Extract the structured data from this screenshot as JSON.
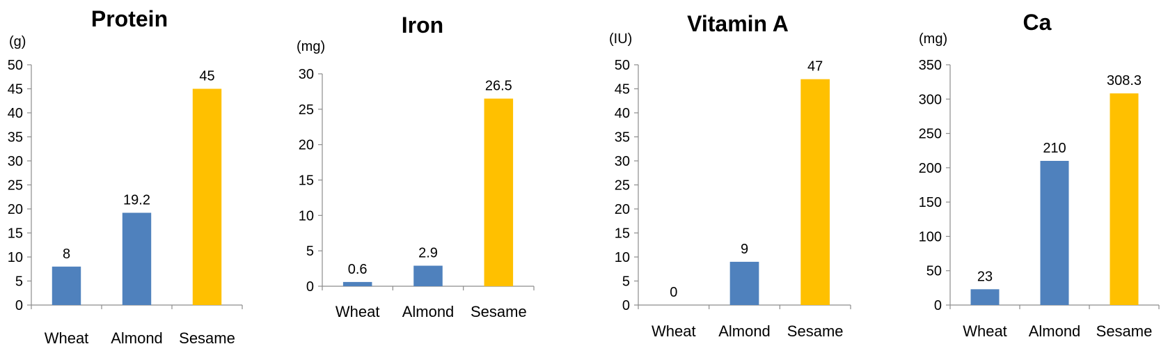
{
  "colors": {
    "blue": "#4f81bd",
    "gold": "#ffc000",
    "axis": "#8c8c8c"
  },
  "chart_data": [
    {
      "type": "bar",
      "title": "Protein",
      "ylabel": "(g)",
      "categories": [
        "Wheat",
        "Almond",
        "Sesame"
      ],
      "values": [
        8,
        19.2,
        45
      ],
      "data_labels": [
        "8",
        "19.2",
        "45"
      ],
      "bar_colors": [
        "#4f81bd",
        "#4f81bd",
        "#ffc000"
      ],
      "ylim": [
        0,
        50
      ],
      "yticks": [
        0,
        5,
        10,
        15,
        20,
        25,
        30,
        35,
        40,
        45,
        50
      ],
      "grid": false,
      "legend": "none"
    },
    {
      "type": "bar",
      "title": "Iron",
      "ylabel": "(mg)",
      "categories": [
        "Wheat",
        "Almond",
        "Sesame"
      ],
      "values": [
        0.6,
        2.9,
        26.5
      ],
      "data_labels": [
        "0.6",
        "2.9",
        "26.5"
      ],
      "bar_colors": [
        "#4f81bd",
        "#4f81bd",
        "#ffc000"
      ],
      "ylim": [
        0,
        30
      ],
      "yticks": [
        0,
        5,
        10,
        15,
        20,
        25,
        30
      ],
      "grid": false,
      "legend": "none"
    },
    {
      "type": "bar",
      "title": "Vitamin A",
      "ylabel": "(IU)",
      "categories": [
        "Wheat",
        "Almond",
        "Sesame"
      ],
      "values": [
        0,
        9,
        47
      ],
      "data_labels": [
        "0",
        "9",
        "47"
      ],
      "bar_colors": [
        "#4f81bd",
        "#4f81bd",
        "#ffc000"
      ],
      "ylim": [
        0,
        50
      ],
      "yticks": [
        0,
        5,
        10,
        15,
        20,
        25,
        30,
        35,
        40,
        45,
        50
      ],
      "grid": false,
      "legend": "none"
    },
    {
      "type": "bar",
      "title": "Ca",
      "ylabel": "(mg)",
      "categories": [
        "Wheat",
        "Almond",
        "Sesame"
      ],
      "values": [
        23,
        210,
        308.3
      ],
      "data_labels": [
        "23",
        "210",
        "308.3"
      ],
      "bar_colors": [
        "#4f81bd",
        "#4f81bd",
        "#ffc000"
      ],
      "ylim": [
        0,
        350
      ],
      "yticks": [
        0,
        50,
        100,
        150,
        200,
        250,
        300,
        350
      ],
      "grid": false,
      "legend": "none"
    }
  ]
}
